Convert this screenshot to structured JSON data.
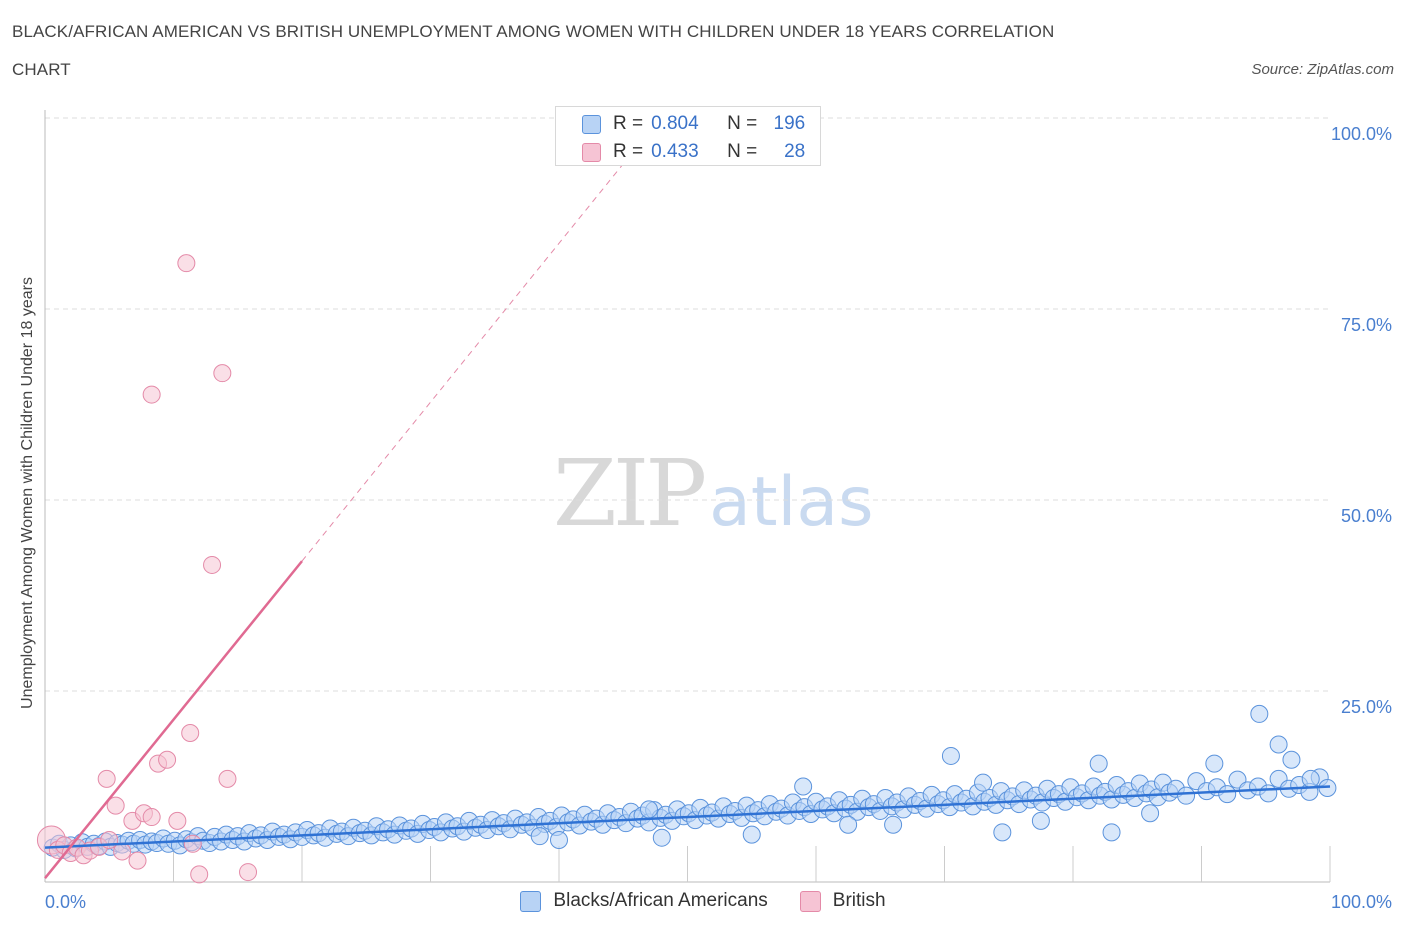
{
  "header": {
    "title_line_1": "BLACK/AFRICAN AMERICAN VS BRITISH UNEMPLOYMENT AMONG WOMEN WITH CHILDREN UNDER 18 YEARS CORRELATION",
    "title_line_2": "CHART",
    "source": "Source: ZipAtlas.com"
  },
  "watermark": {
    "zip": "ZIP",
    "atlas": "atlas"
  },
  "colors": {
    "blue_fill": "#b8d3f5",
    "blue_stroke": "#5b93dc",
    "blue_line": "#2f72d4",
    "pink_fill": "#f6c4d4",
    "pink_stroke": "#e48aa8",
    "pink_line": "#e06a92",
    "grid": "#dddddd",
    "tick_label": "#4a7fcf"
  },
  "legend": {
    "rows": [
      {
        "r_label": "R =",
        "r_value": "0.804",
        "n_label": "N =",
        "n_value": "196"
      },
      {
        "r_label": "R =",
        "r_value": "0.433",
        "n_label": "N =",
        "n_value": "28"
      }
    ]
  },
  "bottom_legend": {
    "items": [
      {
        "label": "Blacks/African Americans"
      },
      {
        "label": "British"
      }
    ]
  },
  "chart_data": {
    "type": "scatter",
    "title": "BLACK/AFRICAN AMERICAN VS BRITISH UNEMPLOYMENT AMONG WOMEN WITH CHILDREN UNDER 18 YEARS CORRELATION CHART",
    "xlabel": "",
    "ylabel": "Unemployment Among Women with Children Under 18 years",
    "xlim": [
      0,
      100
    ],
    "ylim": [
      0,
      100
    ],
    "x_tick_labels": [
      {
        "value": 0,
        "label": "0.0%"
      },
      {
        "value": 100,
        "label": "100.0%"
      }
    ],
    "y_tick_labels": [
      {
        "value": 100,
        "label": "100.0%"
      },
      {
        "value": 75,
        "label": "75.0%"
      },
      {
        "value": 50,
        "label": "50.0%"
      },
      {
        "value": 25,
        "label": "25.0%"
      }
    ],
    "y_gridlines": [
      25,
      50,
      75,
      100
    ],
    "x_minor_ticks": [
      10,
      20,
      30,
      40,
      50,
      60,
      70,
      80,
      90,
      100
    ],
    "grid": true,
    "legend_position": "top-center",
    "series": [
      {
        "name": "Blacks/African Americans",
        "r": 0.804,
        "n": 196,
        "trend": {
          "x0": 0,
          "y0": 4.5,
          "x1": 100,
          "y1": 12.5
        },
        "points": [
          [
            0.6,
            4.5
          ],
          [
            1.1,
            5.0
          ],
          [
            1.5,
            4.2
          ],
          [
            2.0,
            4.8
          ],
          [
            2.4,
            4.4
          ],
          [
            2.9,
            5.2
          ],
          [
            3.3,
            4.6
          ],
          [
            3.8,
            5.0
          ],
          [
            4.2,
            4.7
          ],
          [
            4.7,
            5.3
          ],
          [
            5.1,
            4.6
          ],
          [
            5.6,
            5.1
          ],
          [
            6.0,
            4.9
          ],
          [
            6.5,
            5.4
          ],
          [
            6.9,
            5.0
          ],
          [
            7.4,
            5.5
          ],
          [
            7.8,
            4.9
          ],
          [
            8.3,
            5.3
          ],
          [
            8.7,
            5.1
          ],
          [
            9.2,
            5.7
          ],
          [
            9.6,
            5.0
          ],
          [
            10.1,
            5.4
          ],
          [
            10.5,
            4.8
          ],
          [
            11.0,
            5.6
          ],
          [
            11.4,
            5.2
          ],
          [
            11.9,
            6.0
          ],
          [
            12.3,
            5.4
          ],
          [
            12.8,
            5.1
          ],
          [
            13.2,
            5.9
          ],
          [
            13.7,
            5.3
          ],
          [
            14.1,
            6.2
          ],
          [
            14.6,
            5.5
          ],
          [
            15.0,
            6.0
          ],
          [
            15.5,
            5.3
          ],
          [
            15.9,
            6.4
          ],
          [
            16.4,
            5.7
          ],
          [
            16.8,
            6.1
          ],
          [
            17.3,
            5.5
          ],
          [
            17.7,
            6.6
          ],
          [
            18.2,
            5.9
          ],
          [
            18.6,
            6.2
          ],
          [
            19.1,
            5.6
          ],
          [
            19.5,
            6.5
          ],
          [
            20.0,
            5.9
          ],
          [
            20.4,
            6.8
          ],
          [
            20.9,
            6.1
          ],
          [
            21.3,
            6.4
          ],
          [
            21.8,
            5.8
          ],
          [
            22.2,
            7.0
          ],
          [
            22.7,
            6.3
          ],
          [
            23.1,
            6.6
          ],
          [
            23.6,
            6.0
          ],
          [
            24.0,
            7.1
          ],
          [
            24.5,
            6.4
          ],
          [
            24.9,
            6.7
          ],
          [
            25.4,
            6.1
          ],
          [
            25.8,
            7.3
          ],
          [
            26.3,
            6.5
          ],
          [
            26.7,
            6.9
          ],
          [
            27.2,
            6.2
          ],
          [
            27.6,
            7.4
          ],
          [
            28.1,
            6.7
          ],
          [
            28.5,
            7.0
          ],
          [
            29.0,
            6.3
          ],
          [
            29.4,
            7.6
          ],
          [
            29.9,
            6.8
          ],
          [
            30.3,
            7.2
          ],
          [
            30.8,
            6.5
          ],
          [
            31.2,
            7.8
          ],
          [
            31.7,
            7.0
          ],
          [
            32.1,
            7.3
          ],
          [
            32.6,
            6.6
          ],
          [
            33.0,
            8.0
          ],
          [
            33.5,
            7.1
          ],
          [
            33.9,
            7.5
          ],
          [
            34.4,
            6.8
          ],
          [
            34.8,
            8.1
          ],
          [
            35.3,
            7.3
          ],
          [
            35.7,
            7.7
          ],
          [
            36.2,
            6.9
          ],
          [
            36.6,
            8.3
          ],
          [
            37.1,
            7.5
          ],
          [
            37.5,
            7.8
          ],
          [
            38.0,
            7.1
          ],
          [
            38.4,
            8.5
          ],
          [
            38.9,
            7.6
          ],
          [
            39.3,
            8.0
          ],
          [
            39.8,
            7.2
          ],
          [
            40.2,
            8.7
          ],
          [
            40.7,
            7.8
          ],
          [
            41.1,
            8.2
          ],
          [
            41.6,
            7.4
          ],
          [
            42.0,
            8.8
          ],
          [
            42.5,
            7.9
          ],
          [
            42.9,
            8.3
          ],
          [
            43.4,
            7.5
          ],
          [
            43.8,
            9.0
          ],
          [
            44.3,
            8.1
          ],
          [
            44.7,
            8.5
          ],
          [
            45.2,
            7.7
          ],
          [
            45.6,
            9.2
          ],
          [
            46.1,
            8.3
          ],
          [
            46.5,
            8.7
          ],
          [
            47.0,
            7.8
          ],
          [
            47.4,
            9.4
          ],
          [
            47.9,
            8.4
          ],
          [
            48.3,
            8.8
          ],
          [
            48.8,
            8.0
          ],
          [
            49.2,
            9.5
          ],
          [
            49.7,
            8.6
          ],
          [
            50.1,
            9.0
          ],
          [
            50.6,
            8.1
          ],
          [
            51.0,
            9.7
          ],
          [
            51.5,
            8.7
          ],
          [
            51.9,
            9.1
          ],
          [
            52.4,
            8.3
          ],
          [
            52.8,
            9.9
          ],
          [
            53.3,
            8.9
          ],
          [
            53.7,
            9.3
          ],
          [
            54.2,
            8.4
          ],
          [
            54.6,
            10.0
          ],
          [
            55.1,
            9.0
          ],
          [
            55.5,
            9.4
          ],
          [
            56.0,
            8.6
          ],
          [
            56.4,
            10.2
          ],
          [
            56.9,
            9.2
          ],
          [
            57.3,
            9.6
          ],
          [
            57.8,
            8.7
          ],
          [
            58.2,
            10.4
          ],
          [
            58.7,
            9.3
          ],
          [
            59.1,
            9.8
          ],
          [
            59.6,
            8.9
          ],
          [
            60.0,
            10.5
          ],
          [
            60.5,
            9.5
          ],
          [
            60.9,
            9.9
          ],
          [
            61.4,
            9.0
          ],
          [
            61.8,
            10.7
          ],
          [
            62.3,
            9.6
          ],
          [
            62.7,
            10.1
          ],
          [
            63.2,
            9.2
          ],
          [
            63.6,
            10.9
          ],
          [
            64.1,
            9.8
          ],
          [
            64.5,
            10.2
          ],
          [
            65.0,
            9.3
          ],
          [
            65.4,
            11.0
          ],
          [
            65.9,
            9.9
          ],
          [
            66.3,
            10.4
          ],
          [
            66.8,
            9.5
          ],
          [
            67.2,
            11.2
          ],
          [
            67.7,
            10.1
          ],
          [
            68.1,
            10.6
          ],
          [
            68.6,
            9.6
          ],
          [
            69.0,
            11.4
          ],
          [
            69.5,
            10.2
          ],
          [
            69.9,
            10.7
          ],
          [
            70.4,
            9.8
          ],
          [
            70.8,
            11.5
          ],
          [
            71.3,
            10.4
          ],
          [
            71.7,
            10.9
          ],
          [
            72.2,
            9.9
          ],
          [
            72.6,
            11.7
          ],
          [
            73.1,
            10.5
          ],
          [
            73.5,
            11.0
          ],
          [
            74.0,
            10.1
          ],
          [
            74.4,
            11.9
          ],
          [
            74.9,
            10.7
          ],
          [
            75.3,
            11.2
          ],
          [
            75.8,
            10.2
          ],
          [
            76.2,
            12.0
          ],
          [
            76.7,
            10.8
          ],
          [
            77.1,
            11.3
          ],
          [
            77.6,
            10.4
          ],
          [
            78.0,
            12.2
          ],
          [
            78.5,
            11.0
          ],
          [
            78.9,
            11.5
          ],
          [
            79.4,
            10.5
          ],
          [
            79.8,
            12.4
          ],
          [
            80.3,
            11.1
          ],
          [
            80.7,
            11.6
          ],
          [
            81.2,
            10.7
          ],
          [
            81.6,
            12.5
          ],
          [
            82.1,
            11.3
          ],
          [
            82.5,
            11.8
          ],
          [
            83.0,
            10.8
          ],
          [
            83.4,
            12.7
          ],
          [
            83.9,
            11.4
          ],
          [
            84.3,
            11.9
          ],
          [
            84.8,
            11.0
          ],
          [
            85.2,
            12.9
          ],
          [
            85.7,
            11.6
          ],
          [
            86.1,
            12.1
          ],
          [
            86.6,
            11.1
          ],
          [
            87.0,
            13.0
          ],
          [
            87.5,
            11.7
          ],
          [
            88.0,
            12.2
          ],
          [
            88.8,
            11.3
          ],
          [
            89.6,
            13.2
          ],
          [
            90.4,
            11.9
          ],
          [
            91.2,
            12.4
          ],
          [
            92.0,
            11.5
          ],
          [
            92.8,
            13.4
          ],
          [
            93.6,
            12.0
          ],
          [
            94.4,
            12.5
          ],
          [
            95.2,
            11.6
          ],
          [
            96.0,
            13.5
          ],
          [
            96.8,
            12.2
          ],
          [
            97.6,
            12.7
          ],
          [
            98.4,
            11.8
          ],
          [
            99.2,
            13.7
          ],
          [
            99.8,
            12.3
          ],
          [
            70.5,
            16.5
          ],
          [
            82.0,
            15.5
          ],
          [
            96.0,
            18.0
          ],
          [
            98.5,
            13.5
          ],
          [
            91.0,
            15.5
          ],
          [
            97.0,
            16.0
          ],
          [
            73.0,
            13.0
          ],
          [
            86.0,
            9.0
          ],
          [
            94.5,
            22.0
          ],
          [
            77.5,
            8.0
          ],
          [
            48.0,
            5.8
          ],
          [
            55.0,
            6.2
          ],
          [
            62.5,
            7.5
          ],
          [
            38.5,
            6.0
          ],
          [
            83.0,
            6.5
          ],
          [
            74.5,
            6.5
          ],
          [
            66.0,
            7.5
          ],
          [
            47.0,
            9.5
          ],
          [
            59.0,
            12.5
          ],
          [
            40.0,
            5.5
          ]
        ]
      },
      {
        "name": "British",
        "r": 0.433,
        "n": 28,
        "trend": {
          "x0": 0,
          "y0": 0.5,
          "x1": 20,
          "y1": 42.0
        },
        "trend_dashed_extension": {
          "x0": 20,
          "y0": 42.0,
          "x1": 45,
          "y1": 94.0
        },
        "points": [
          [
            0.5,
            5.5
          ],
          [
            1.0,
            4.2
          ],
          [
            1.5,
            4.8
          ],
          [
            2.0,
            3.8
          ],
          [
            2.5,
            4.5
          ],
          [
            3.0,
            3.5
          ],
          [
            3.5,
            4.1
          ],
          [
            4.2,
            4.6
          ],
          [
            5.0,
            5.5
          ],
          [
            5.5,
            10.0
          ],
          [
            6.0,
            4.0
          ],
          [
            6.8,
            8.0
          ],
          [
            7.2,
            2.8
          ],
          [
            7.7,
            9.0
          ],
          [
            8.3,
            8.5
          ],
          [
            8.8,
            15.5
          ],
          [
            9.5,
            16.0
          ],
          [
            10.3,
            8.0
          ],
          [
            11.0,
            81.0
          ],
          [
            11.5,
            5.0
          ],
          [
            12.0,
            1.0
          ],
          [
            8.3,
            63.8
          ],
          [
            11.3,
            19.5
          ],
          [
            13.0,
            41.5
          ],
          [
            13.8,
            66.6
          ],
          [
            14.2,
            13.5
          ],
          [
            15.8,
            1.3
          ],
          [
            4.8,
            13.5
          ]
        ]
      }
    ]
  }
}
